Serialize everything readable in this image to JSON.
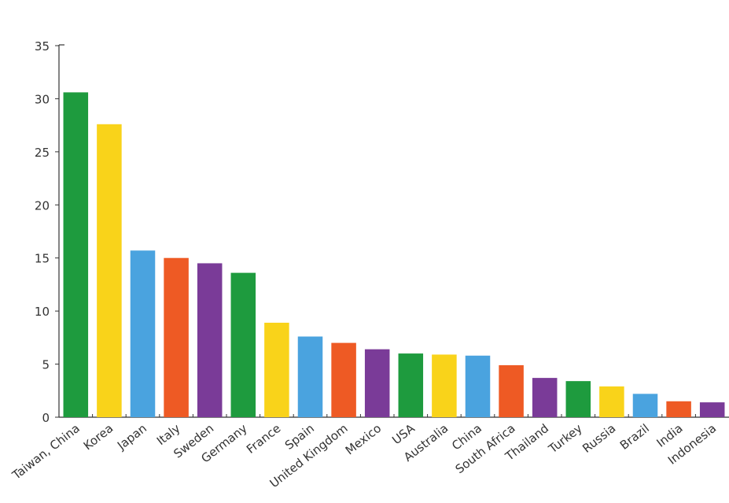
{
  "chart_data": {
    "type": "bar",
    "categories": [
      "Taiwan, China",
      "Korea",
      "Japan",
      "Italy",
      "Sweden",
      "Germany",
      "France",
      "Spain",
      "United Kingdom",
      "Mexico",
      "USA",
      "Australia",
      "China",
      "South Africa",
      "Thailand",
      "Turkey",
      "Russia",
      "Brazil",
      "India",
      "Indonesia"
    ],
    "values": [
      30.6,
      27.6,
      15.7,
      15.0,
      14.5,
      13.6,
      8.9,
      7.6,
      7.0,
      6.4,
      6.0,
      5.9,
      5.8,
      4.9,
      3.7,
      3.4,
      2.9,
      2.2,
      1.5,
      1.4
    ],
    "colors": [
      "#1e9b3e",
      "#f9d31a",
      "#4aa3df",
      "#ee5a24",
      "#7a3b98",
      "#1e9b3e",
      "#f9d31a",
      "#4aa3df",
      "#ee5a24",
      "#7a3b98",
      "#1e9b3e",
      "#f9d31a",
      "#4aa3df",
      "#ee5a24",
      "#7a3b98",
      "#1e9b3e",
      "#f9d31a",
      "#4aa3df",
      "#ee5a24",
      "#7a3b98"
    ],
    "ylim": [
      0,
      35
    ],
    "yticks": [
      0,
      5,
      10,
      15,
      20,
      25,
      30,
      35
    ],
    "grid": false
  }
}
